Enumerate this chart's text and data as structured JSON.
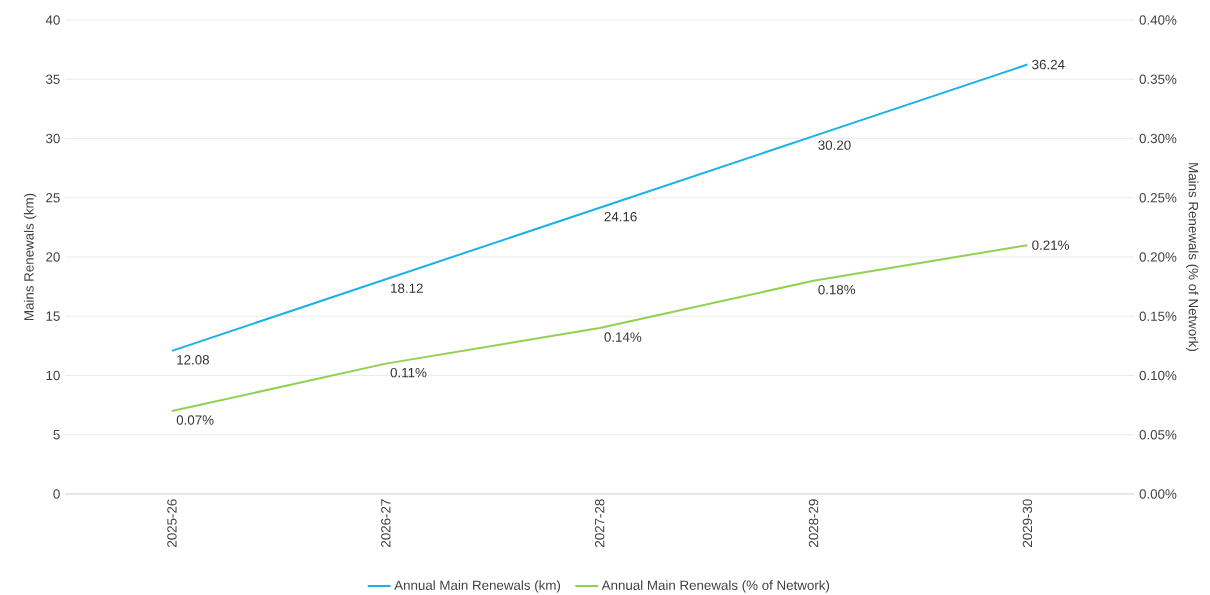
{
  "chart_data": {
    "type": "line",
    "categories": [
      "2025-26",
      "2026-27",
      "2027-28",
      "2028-29",
      "2029-30"
    ],
    "series": [
      {
        "name": "Annual Main Renewals (km)",
        "color": "#1ab0e8",
        "values": [
          12.08,
          18.12,
          24.16,
          30.2,
          36.24
        ],
        "value_labels": [
          "12.08",
          "18.12",
          "24.16",
          "30.20",
          "36.24"
        ]
      },
      {
        "name": "Annual Main Renewals (% of Network)",
        "color": "#92d050",
        "axis": "y2",
        "values": [
          0.07,
          0.11,
          0.14,
          0.18,
          0.21
        ],
        "value_labels": [
          "0.07%",
          "0.11%",
          "0.14%",
          "0.18%",
          "0.21%"
        ]
      }
    ],
    "ylabel": "Mains Renewals (km)",
    "y2label": "Mains Renewals (% of Network)",
    "ylim": [
      0,
      40
    ],
    "yticks": [
      0,
      5,
      10,
      15,
      20,
      25,
      30,
      35,
      40
    ],
    "y2lim": [
      0,
      0.4
    ],
    "y2ticks": [
      {
        "value": 0,
        "label": "0.00%"
      },
      {
        "value": 0.05,
        "label": "0.05%"
      },
      {
        "value": 0.1,
        "label": "0.10%"
      },
      {
        "value": 0.15,
        "label": "0.15%"
      },
      {
        "value": 0.2,
        "label": "0.20%"
      },
      {
        "value": 0.25,
        "label": "0.25%"
      },
      {
        "value": 0.3,
        "label": "0.30%"
      },
      {
        "value": 0.35,
        "label": "0.35%"
      },
      {
        "value": 0.4,
        "label": "0.40%"
      }
    ],
    "grid": "y",
    "legend": "bottom",
    "marker": "none"
  }
}
